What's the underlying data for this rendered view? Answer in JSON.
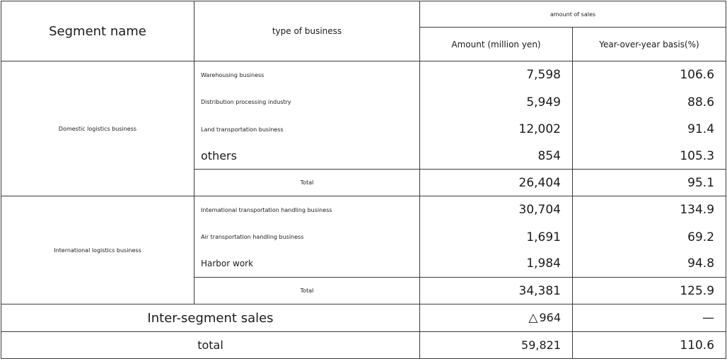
{
  "header": {
    "segment_name": "Segment name",
    "type_of_business": "type of business",
    "amount_of_sales": "amount of sales",
    "amount": "Amount (million yen)",
    "yoy": "Year-over-year basis(%)"
  },
  "domestic": {
    "segment": "Domestic logistics business",
    "rows": [
      {
        "type": "Warehousing business",
        "amount": "7,598",
        "yoy": "106.6"
      },
      {
        "type": "Distribution processing industry",
        "amount": "5,949",
        "yoy": "88.6"
      },
      {
        "type": "Land transportation business",
        "amount": "12,002",
        "yoy": "91.4"
      },
      {
        "type": "others",
        "amount": "854",
        "yoy": "105.3"
      }
    ],
    "total": {
      "label": "Total",
      "amount": "26,404",
      "yoy": "95.1"
    }
  },
  "international": {
    "segment": "International logistics business",
    "rows": [
      {
        "type": "International transportation handling business",
        "amount": "30,704",
        "yoy": "134.9"
      },
      {
        "type": "Air transportation handling business",
        "amount": "1,691",
        "yoy": "69.2"
      },
      {
        "type": "Harbor work",
        "amount": "1,984",
        "yoy": "94.8"
      }
    ],
    "total": {
      "label": "Total",
      "amount": "34,381",
      "yoy": "125.9"
    }
  },
  "inter_segment": {
    "label": "Inter-segment sales",
    "symbol": "△",
    "amount": "964",
    "yoy": "—"
  },
  "grand_total": {
    "label": "total",
    "amount": "59,821",
    "yoy": "110.6"
  }
}
